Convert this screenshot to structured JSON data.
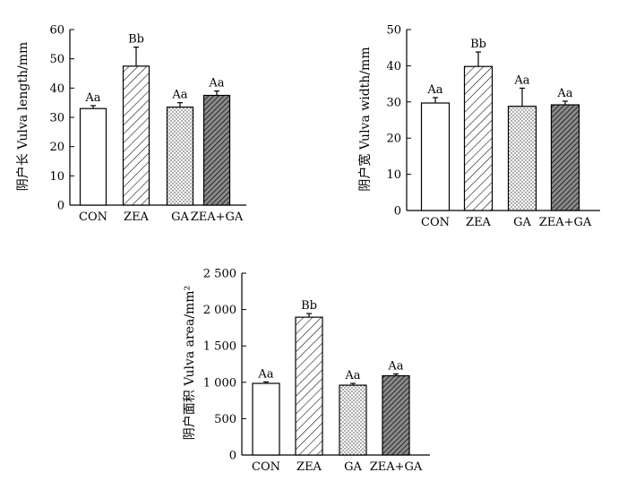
{
  "chart_data": [
    {
      "type": "bar",
      "categories": [
        "CON",
        "ZEA",
        "GA",
        "ZEA+GA"
      ],
      "values": [
        33,
        47.5,
        33.5,
        37.5
      ],
      "errors": [
        1,
        6.5,
        1.5,
        1.5
      ],
      "significance_labels": [
        "Aa",
        "Bb",
        "Aa",
        "Aa"
      ],
      "ylabel": "阴户长  Vulva length/mm",
      "ylim": [
        0,
        60
      ],
      "yticks": [
        "0",
        "10",
        "20",
        "30",
        "40",
        "50",
        "60"
      ],
      "bar_patterns": [
        "none",
        "hatch-wide",
        "dots",
        "hatch-dense"
      ]
    },
    {
      "type": "bar",
      "categories": [
        "CON",
        "ZEA",
        "GA",
        "ZEA+GA"
      ],
      "values": [
        29.7,
        39.8,
        28.8,
        29.2
      ],
      "errors": [
        1.5,
        4,
        5,
        1
      ],
      "significance_labels": [
        "Aa",
        "Bb",
        "Aa",
        "Aa"
      ],
      "ylabel": "阴户宽  Vulva width/mm",
      "ylim": [
        0,
        50
      ],
      "yticks": [
        "0",
        "10",
        "20",
        "30",
        "40",
        "50"
      ],
      "bar_patterns": [
        "none",
        "hatch-wide",
        "dots",
        "hatch-dense"
      ]
    },
    {
      "type": "bar",
      "categories": [
        "CON",
        "ZEA",
        "GA",
        "ZEA+GA"
      ],
      "values": [
        985,
        1895,
        960,
        1090
      ],
      "errors": [
        20,
        50,
        25,
        25
      ],
      "significance_labels": [
        "Aa",
        "Bb",
        "Aa",
        "Aa"
      ],
      "ylabel": "阴户面积  Vulva area/mm²",
      "ylim": [
        0,
        2500
      ],
      "yticks": [
        "0",
        "500",
        "1 000",
        "1 500",
        "2 000",
        "2 500"
      ],
      "bar_patterns": [
        "none",
        "hatch-wide",
        "dots",
        "hatch-dense"
      ]
    }
  ]
}
